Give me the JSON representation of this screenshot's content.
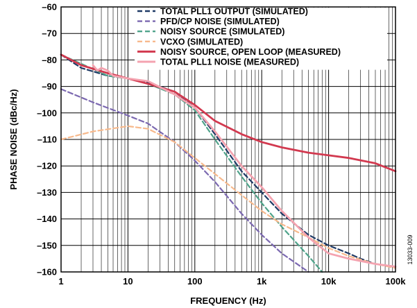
{
  "chart_data": {
    "type": "line",
    "xlabel": "FREQUENCY (Hz)",
    "ylabel": "PHASE NOISE (dBc/Hz)",
    "figure_id": "13033-009",
    "x_scale": "log",
    "xlim": [
      1,
      100000
    ],
    "ylim": [
      -160,
      -60
    ],
    "x_ticks": [
      {
        "value": 1,
        "label": "1"
      },
      {
        "value": 10,
        "label": "10"
      },
      {
        "value": 100,
        "label": "100"
      },
      {
        "value": 1000,
        "label": "1k"
      },
      {
        "value": 10000,
        "label": "10k"
      },
      {
        "value": 100000,
        "label": "100k"
      }
    ],
    "y_ticks": [
      {
        "value": -60,
        "label": "–60"
      },
      {
        "value": -70,
        "label": "–70"
      },
      {
        "value": -80,
        "label": "–80"
      },
      {
        "value": -90,
        "label": "–90"
      },
      {
        "value": -100,
        "label": "–100"
      },
      {
        "value": -110,
        "label": "–110"
      },
      {
        "value": -120,
        "label": "–120"
      },
      {
        "value": -130,
        "label": "–130"
      },
      {
        "value": -140,
        "label": "–140"
      },
      {
        "value": -150,
        "label": "–150"
      },
      {
        "value": -160,
        "label": "–160"
      }
    ],
    "grid": true,
    "legend_position": "top-right",
    "series": [
      {
        "name": "TOTAL PLL1 OUTPUT (SIMULATED)",
        "color": "#1f3a66",
        "dash": "dashed",
        "points": [
          [
            1,
            -78
          ],
          [
            2,
            -83
          ],
          [
            5,
            -86
          ],
          [
            10,
            -87
          ],
          [
            20,
            -88.5
          ],
          [
            50,
            -92
          ],
          [
            100,
            -98
          ],
          [
            200,
            -108
          ],
          [
            500,
            -122
          ],
          [
            1000,
            -130
          ],
          [
            2000,
            -138
          ],
          [
            5000,
            -146
          ],
          [
            10000,
            -150
          ],
          [
            20000,
            -153
          ],
          [
            30000,
            -155
          ],
          [
            50000,
            -157
          ],
          [
            100000,
            -158
          ]
        ]
      },
      {
        "name": "PFD/CP NOISE (SIMULATED)",
        "color": "#7b68b0",
        "dash": "dashed",
        "points": [
          [
            1,
            -91
          ],
          [
            3,
            -96
          ],
          [
            10,
            -101
          ],
          [
            20,
            -104
          ],
          [
            50,
            -111
          ],
          [
            100,
            -118
          ],
          [
            200,
            -126
          ],
          [
            500,
            -138
          ],
          [
            1000,
            -146
          ],
          [
            2000,
            -153
          ],
          [
            5000,
            -160
          ]
        ]
      },
      {
        "name": "NOISY SOURCE (SIMULATED)",
        "color": "#4fa38a",
        "dash": "dashed",
        "points": [
          [
            1,
            -78
          ],
          [
            5,
            -86
          ],
          [
            10,
            -87
          ],
          [
            20,
            -89
          ],
          [
            50,
            -93
          ],
          [
            100,
            -99
          ],
          [
            200,
            -110
          ],
          [
            500,
            -124
          ],
          [
            1000,
            -134
          ],
          [
            2000,
            -143
          ],
          [
            5000,
            -154
          ],
          [
            8000,
            -160
          ]
        ]
      },
      {
        "name": "VCXO (SIMULATED)",
        "color": "#f7b98c",
        "dash": "dashed",
        "points": [
          [
            1,
            -110
          ],
          [
            3,
            -107
          ],
          [
            10,
            -105
          ],
          [
            20,
            -106
          ],
          [
            50,
            -111
          ],
          [
            100,
            -117
          ],
          [
            200,
            -123
          ],
          [
            500,
            -131
          ],
          [
            1000,
            -137
          ],
          [
            2000,
            -142
          ],
          [
            5000,
            -147
          ],
          [
            10000,
            -151
          ],
          [
            20000,
            -154
          ],
          [
            50000,
            -157
          ],
          [
            100000,
            -158.5
          ]
        ]
      },
      {
        "name": "NOISY SOURCE, OPEN LOOP (MEASURED)",
        "color": "#d2394f",
        "dash": "solid",
        "points": [
          [
            1,
            -78
          ],
          [
            2,
            -82
          ],
          [
            5,
            -85
          ],
          [
            10,
            -87
          ],
          [
            20,
            -89
          ],
          [
            50,
            -92
          ],
          [
            100,
            -97
          ],
          [
            200,
            -103
          ],
          [
            500,
            -108
          ],
          [
            1000,
            -111
          ],
          [
            2000,
            -113
          ],
          [
            5000,
            -115
          ],
          [
            10000,
            -116
          ],
          [
            20000,
            -117
          ],
          [
            50000,
            -119
          ],
          [
            100000,
            -122
          ]
        ]
      },
      {
        "name": "TOTAL PLL1 NOISE (MEASURED)",
        "color": "#f4a3b0",
        "dash": "solid",
        "points": [
          [
            3,
            -82
          ],
          [
            3.5,
            -84
          ],
          [
            4,
            -83
          ],
          [
            5,
            -84
          ],
          [
            6,
            -86
          ],
          [
            10,
            -87
          ],
          [
            20,
            -88
          ],
          [
            50,
            -93
          ],
          [
            100,
            -98
          ],
          [
            200,
            -107
          ],
          [
            500,
            -120
          ],
          [
            1000,
            -128
          ],
          [
            2000,
            -137
          ],
          [
            5000,
            -147
          ],
          [
            10000,
            -153
          ],
          [
            20000,
            -155
          ],
          [
            50000,
            -157
          ],
          [
            100000,
            -158
          ]
        ]
      }
    ]
  }
}
